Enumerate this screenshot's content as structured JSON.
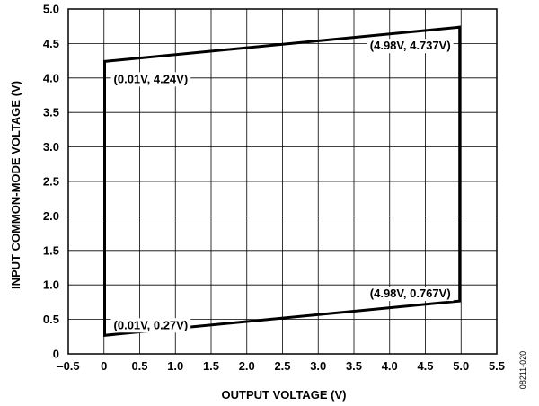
{
  "chart_data": {
    "type": "line",
    "xlabel": "OUTPUT VOLTAGE (V)",
    "ylabel": "INPUT COMMON-MODE VOLTAGE (V)",
    "xlim": [
      -0.5,
      5.5
    ],
    "ylim": [
      0,
      5.0
    ],
    "x_ticks": [
      -0.5,
      0,
      0.5,
      1.0,
      1.5,
      2.0,
      2.5,
      3.0,
      3.5,
      4.0,
      4.5,
      5.0,
      5.5
    ],
    "x_tick_labels": [
      "–0.5",
      "0",
      "0.5",
      "1.0",
      "1.5",
      "2.0",
      "2.5",
      "3.0",
      "3.5",
      "4.0",
      "4.5",
      "5.0",
      "5.5"
    ],
    "y_ticks": [
      0,
      0.5,
      1.0,
      1.5,
      2.0,
      2.5,
      3.0,
      3.5,
      4.0,
      4.5,
      5.0
    ],
    "y_tick_labels": [
      "0",
      "0.5",
      "1.0",
      "1.5",
      "2.0",
      "2.5",
      "3.0",
      "3.5",
      "4.0",
      "4.5",
      "5.0"
    ],
    "grid": true,
    "series": [
      {
        "closed": true,
        "color": "#000000",
        "points": [
          [
            0.01,
            0.27
          ],
          [
            0.01,
            4.24
          ],
          [
            4.98,
            4.737
          ],
          [
            4.98,
            0.767
          ]
        ]
      }
    ],
    "annotations": [
      {
        "text": "(0.01V, 4.24V)",
        "x": 0.01,
        "y": 4.24,
        "placement": "right-below"
      },
      {
        "text": "(4.98V, 4.737V)",
        "x": 4.98,
        "y": 4.737,
        "placement": "left-below"
      },
      {
        "text": "(4.98V, 0.767V)",
        "x": 4.98,
        "y": 0.767,
        "placement": "left-above"
      },
      {
        "text": "(0.01V, 0.27V)",
        "x": 0.01,
        "y": 0.27,
        "placement": "right-above"
      }
    ]
  },
  "figure_id": "08211-020"
}
